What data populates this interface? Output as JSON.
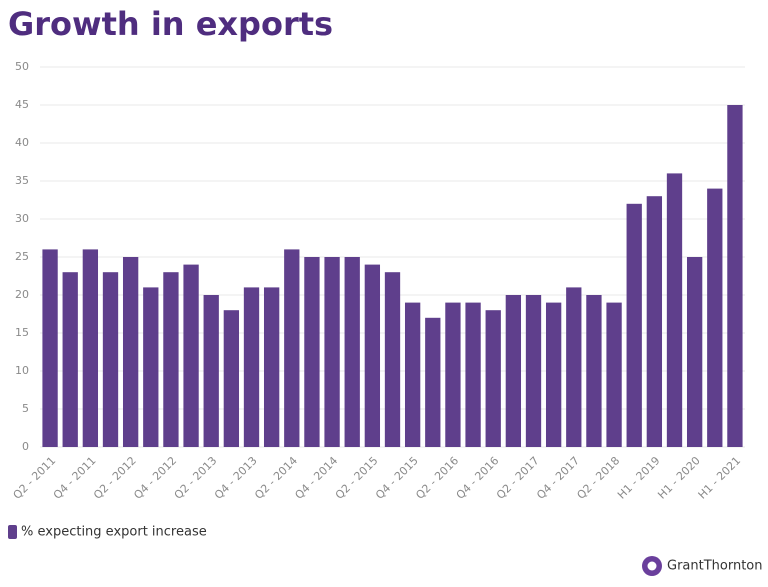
{
  "chart_data": {
    "type": "bar",
    "title": "Growth in exports",
    "categories": [
      "Q2 - 2011",
      null,
      "Q4 - 2011",
      null,
      "Q2 - 2012",
      null,
      "Q4 - 2012",
      null,
      "Q2 - 2013",
      null,
      "Q4 - 2013",
      null,
      "Q2 - 2014",
      null,
      "Q4 - 2014",
      null,
      "Q2 - 2015",
      null,
      "Q4 - 2015",
      null,
      "Q2 - 2016",
      null,
      "Q4 - 2016",
      null,
      "Q2 - 2017",
      null,
      "Q4 - 2017",
      null,
      "Q2 - 2018",
      null,
      "H1 - 2019",
      null,
      "H1 - 2020",
      null,
      "H1 - 2021"
    ],
    "series": [
      {
        "name": "% expecting export increase",
        "color": "#5f3f8c",
        "values": [
          26,
          23,
          26,
          23,
          25,
          21,
          23,
          24,
          20,
          18,
          21,
          21,
          26,
          25,
          25,
          25,
          24,
          23,
          19,
          17,
          19,
          19,
          18,
          20,
          20,
          19,
          21,
          20,
          19,
          32,
          33,
          36,
          25,
          34,
          45
        ]
      }
    ],
    "ylim": [
      0,
      50
    ],
    "yticks": [
      0,
      5,
      10,
      15,
      20,
      25,
      30,
      35,
      40,
      45,
      50
    ],
    "grid": true,
    "legend": "bottom-left"
  },
  "brand": "GrantThornton"
}
